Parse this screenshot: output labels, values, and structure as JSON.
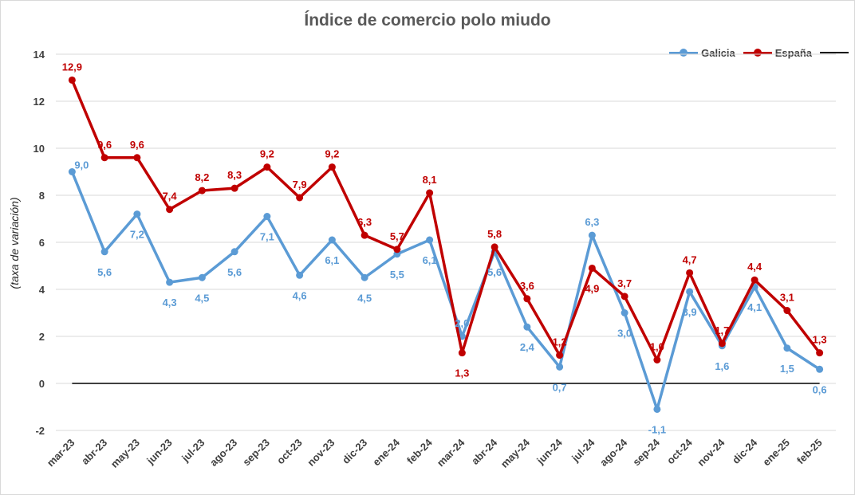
{
  "chart_data": {
    "type": "line",
    "title": "Índice de comercio polo miudo",
    "ylabel": "(taxa de variación)",
    "xlabel": "",
    "ylim": [
      -2,
      14
    ],
    "yticks": [
      -2,
      0,
      2,
      4,
      6,
      8,
      10,
      12,
      14
    ],
    "grid": true,
    "legend": "top-right",
    "categories": [
      "mar-23",
      "abr-23",
      "may-23",
      "jun-23",
      "jul-23",
      "ago-23",
      "sep-23",
      "oct-23",
      "nov-23",
      "dic-23",
      "ene-24",
      "feb-24",
      "mar-24",
      "abr-24",
      "may-24",
      "jun-24",
      "jul-24",
      "ago-24",
      "sep-24",
      "oct-24",
      "nov-24",
      "dic-24",
      "ene-25",
      "feb-25"
    ],
    "series": [
      {
        "name": "Galicia",
        "color": "#5b9bd5",
        "values": [
          9.0,
          5.6,
          7.2,
          4.3,
          4.5,
          5.6,
          7.1,
          4.6,
          6.1,
          4.5,
          5.5,
          6.1,
          2.0,
          5.6,
          2.4,
          0.7,
          6.3,
          3.0,
          -1.1,
          3.9,
          1.6,
          4.1,
          1.5,
          0.6
        ],
        "labels": [
          "9,0",
          "5,6",
          "7,2",
          "4,3",
          "4,5",
          "5,6",
          "7,1",
          "4,6",
          "6,1",
          "4,5",
          "5,5",
          "6,1",
          "2,0",
          "5,6",
          "2,4",
          "0,7",
          "6,3",
          "3,0",
          "-1,1",
          "3,9",
          "1,6",
          "4,1",
          "1,5",
          "0,6"
        ]
      },
      {
        "name": "España",
        "color": "#c00000",
        "values": [
          12.9,
          9.6,
          9.6,
          7.4,
          8.2,
          8.3,
          9.2,
          7.9,
          9.2,
          6.3,
          5.7,
          8.1,
          1.3,
          5.8,
          3.6,
          1.2,
          4.9,
          3.7,
          1.0,
          4.7,
          1.7,
          4.4,
          3.1,
          1.3
        ],
        "labels": [
          "12,9",
          "9,6",
          "9,6",
          "7,4",
          "8,2",
          "8,3",
          "9,2",
          "7,9",
          "9,2",
          "6,3",
          "5,7",
          "8,1",
          "1,3",
          "5,8",
          "3,6",
          "1,2",
          "4,9",
          "3,7",
          "1,0",
          "4,7",
          "1,7",
          "4,4",
          "3,1",
          "1,3"
        ]
      },
      {
        "name": "",
        "color": "#000000",
        "type": "reference-line",
        "value": 0
      }
    ]
  }
}
